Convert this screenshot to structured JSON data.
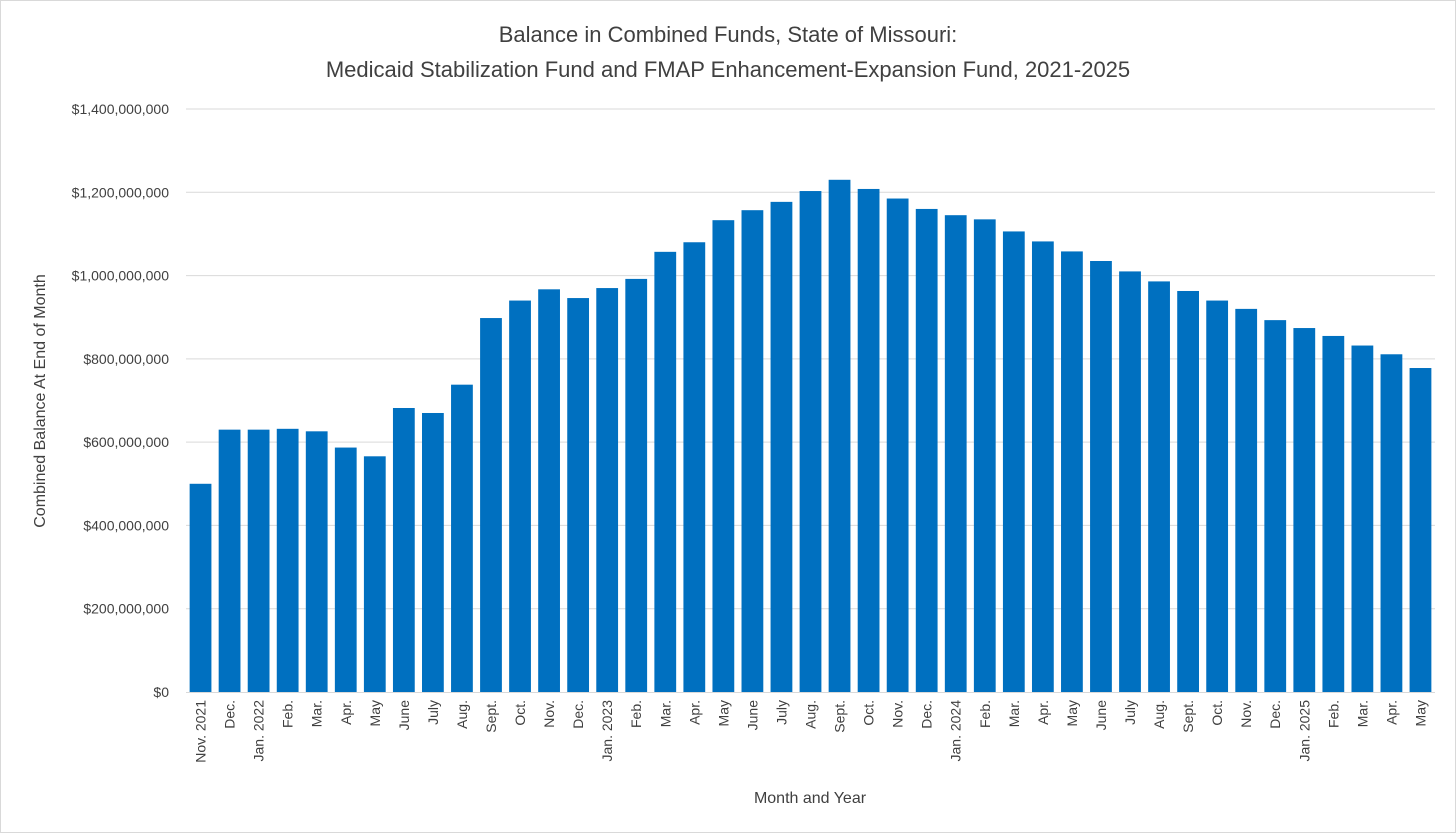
{
  "chart_data": {
    "type": "bar",
    "title": "Balance in Combined Funds, State of Missouri:",
    "subtitle": "Medicaid Stabilization Fund and FMAP Enhancement-Expansion Fund, 2021-2025",
    "xlabel": "Month and Year",
    "ylabel": "Combined Balance At End of Month",
    "ylim": [
      0,
      1400000000
    ],
    "yticks": [
      0,
      200000000,
      400000000,
      600000000,
      800000000,
      1000000000,
      1200000000,
      1400000000
    ],
    "ytick_labels": [
      "$0",
      "$200,000,000",
      "$400,000,000",
      "$600,000,000",
      "$800,000,000",
      "$1,000,000,000",
      "$1,200,000,000",
      "$1,400,000,000"
    ],
    "grid": true,
    "bar_color": "#0070C0",
    "categories": [
      "Nov. 2021",
      "Dec.",
      "Jan. 2022",
      "Feb.",
      "Mar.",
      "Apr.",
      "May",
      "June",
      "July",
      "Aug.",
      "Sept.",
      "Oct.",
      "Nov.",
      "Dec.",
      "Jan. 2023",
      "Feb.",
      "Mar.",
      "Apr.",
      "May",
      "June",
      "July",
      "Aug.",
      "Sept.",
      "Oct.",
      "Nov.",
      "Dec.",
      "Jan. 2024",
      "Feb.",
      "Mar.",
      "Apr.",
      "May",
      "June",
      "July",
      "Aug.",
      "Sept.",
      "Oct.",
      "Nov.",
      "Dec.",
      "Jan. 2025",
      "Feb.",
      "Mar.",
      "Apr.",
      "May"
    ],
    "values": [
      500000000,
      630000000,
      630000000,
      632000000,
      626000000,
      587000000,
      566000000,
      682000000,
      670000000,
      738000000,
      898000000,
      940000000,
      967000000,
      946000000,
      970000000,
      992000000,
      1057000000,
      1080000000,
      1133000000,
      1157000000,
      1177000000,
      1203000000,
      1230000000,
      1208000000,
      1185000000,
      1160000000,
      1145000000,
      1135000000,
      1106000000,
      1082000000,
      1058000000,
      1035000000,
      1010000000,
      986000000,
      963000000,
      940000000,
      920000000,
      893000000,
      874000000,
      855000000,
      832000000,
      811000000,
      778000000
    ]
  }
}
